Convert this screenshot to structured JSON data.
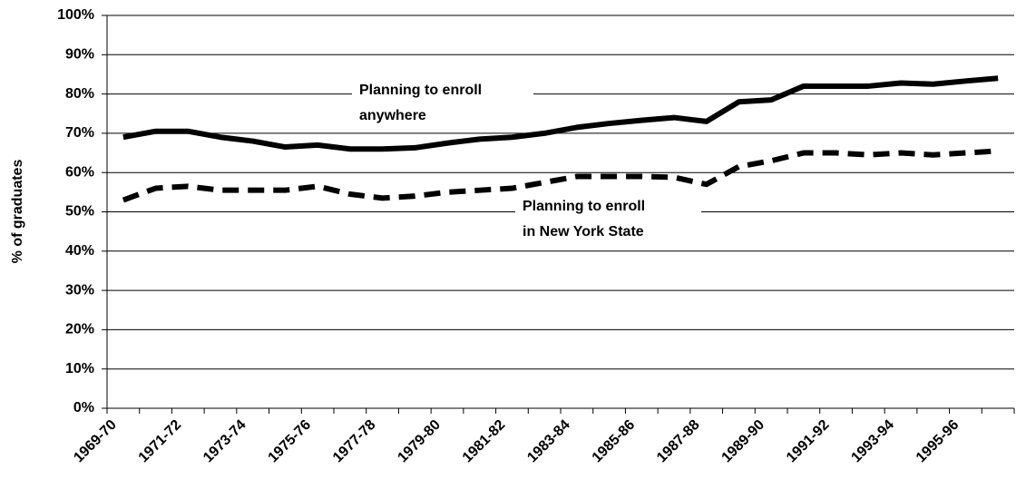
{
  "chart_data": {
    "type": "line",
    "y_label": "% of graduates",
    "categories": [
      "1969-70",
      null,
      "1971-72",
      null,
      "1973-74",
      null,
      "1975-76",
      null,
      "1977-78",
      null,
      "1979-80",
      null,
      "1981-82",
      null,
      "1983-84",
      null,
      "1985-86",
      null,
      "1987-88",
      null,
      "1989-90",
      null,
      "1991-92",
      null,
      "1993-94",
      null,
      "1995-96",
      null
    ],
    "series": [
      {
        "name": "Planning to enroll anywhere",
        "color": "#000000",
        "dashed": false,
        "values": [
          69,
          70.5,
          70.5,
          69,
          68,
          66.5,
          67,
          66,
          66,
          66.3,
          67.5,
          68.5,
          69,
          70,
          71.5,
          72.5,
          73.3,
          74,
          73,
          78,
          78.5,
          82,
          82,
          82,
          82.8,
          82.5,
          83.3,
          84
        ]
      },
      {
        "name": "Planning to enroll in New York State",
        "color": "#000000",
        "dashed": true,
        "values": [
          53,
          56,
          56.5,
          55.5,
          55.5,
          55.5,
          56.5,
          54.5,
          53.5,
          54,
          55,
          55.5,
          56,
          57.5,
          59,
          59,
          59,
          58.8,
          57,
          61.5,
          63,
          65,
          65,
          64.5,
          65,
          64.5,
          65,
          65.5
        ]
      }
    ],
    "annotations": [
      {
        "lines": [
          "Planning to enroll",
          "anywhere"
        ]
      },
      {
        "lines": [
          "Planning to enroll",
          "in New York State"
        ]
      }
    ],
    "ylim": [
      0,
      100
    ],
    "yticks": [
      {
        "value": 0,
        "label": "0%"
      },
      {
        "value": 10,
        "label": "10%"
      },
      {
        "value": 20,
        "label": "20%"
      },
      {
        "value": 30,
        "label": "30%"
      },
      {
        "value": 40,
        "label": "40%"
      },
      {
        "value": 50,
        "label": "50%"
      },
      {
        "value": 60,
        "label": "60%"
      },
      {
        "value": 70,
        "label": "70%"
      },
      {
        "value": 80,
        "label": "80%"
      },
      {
        "value": 90,
        "label": "90%"
      },
      {
        "value": 100,
        "label": "100%"
      }
    ],
    "grid": true
  }
}
